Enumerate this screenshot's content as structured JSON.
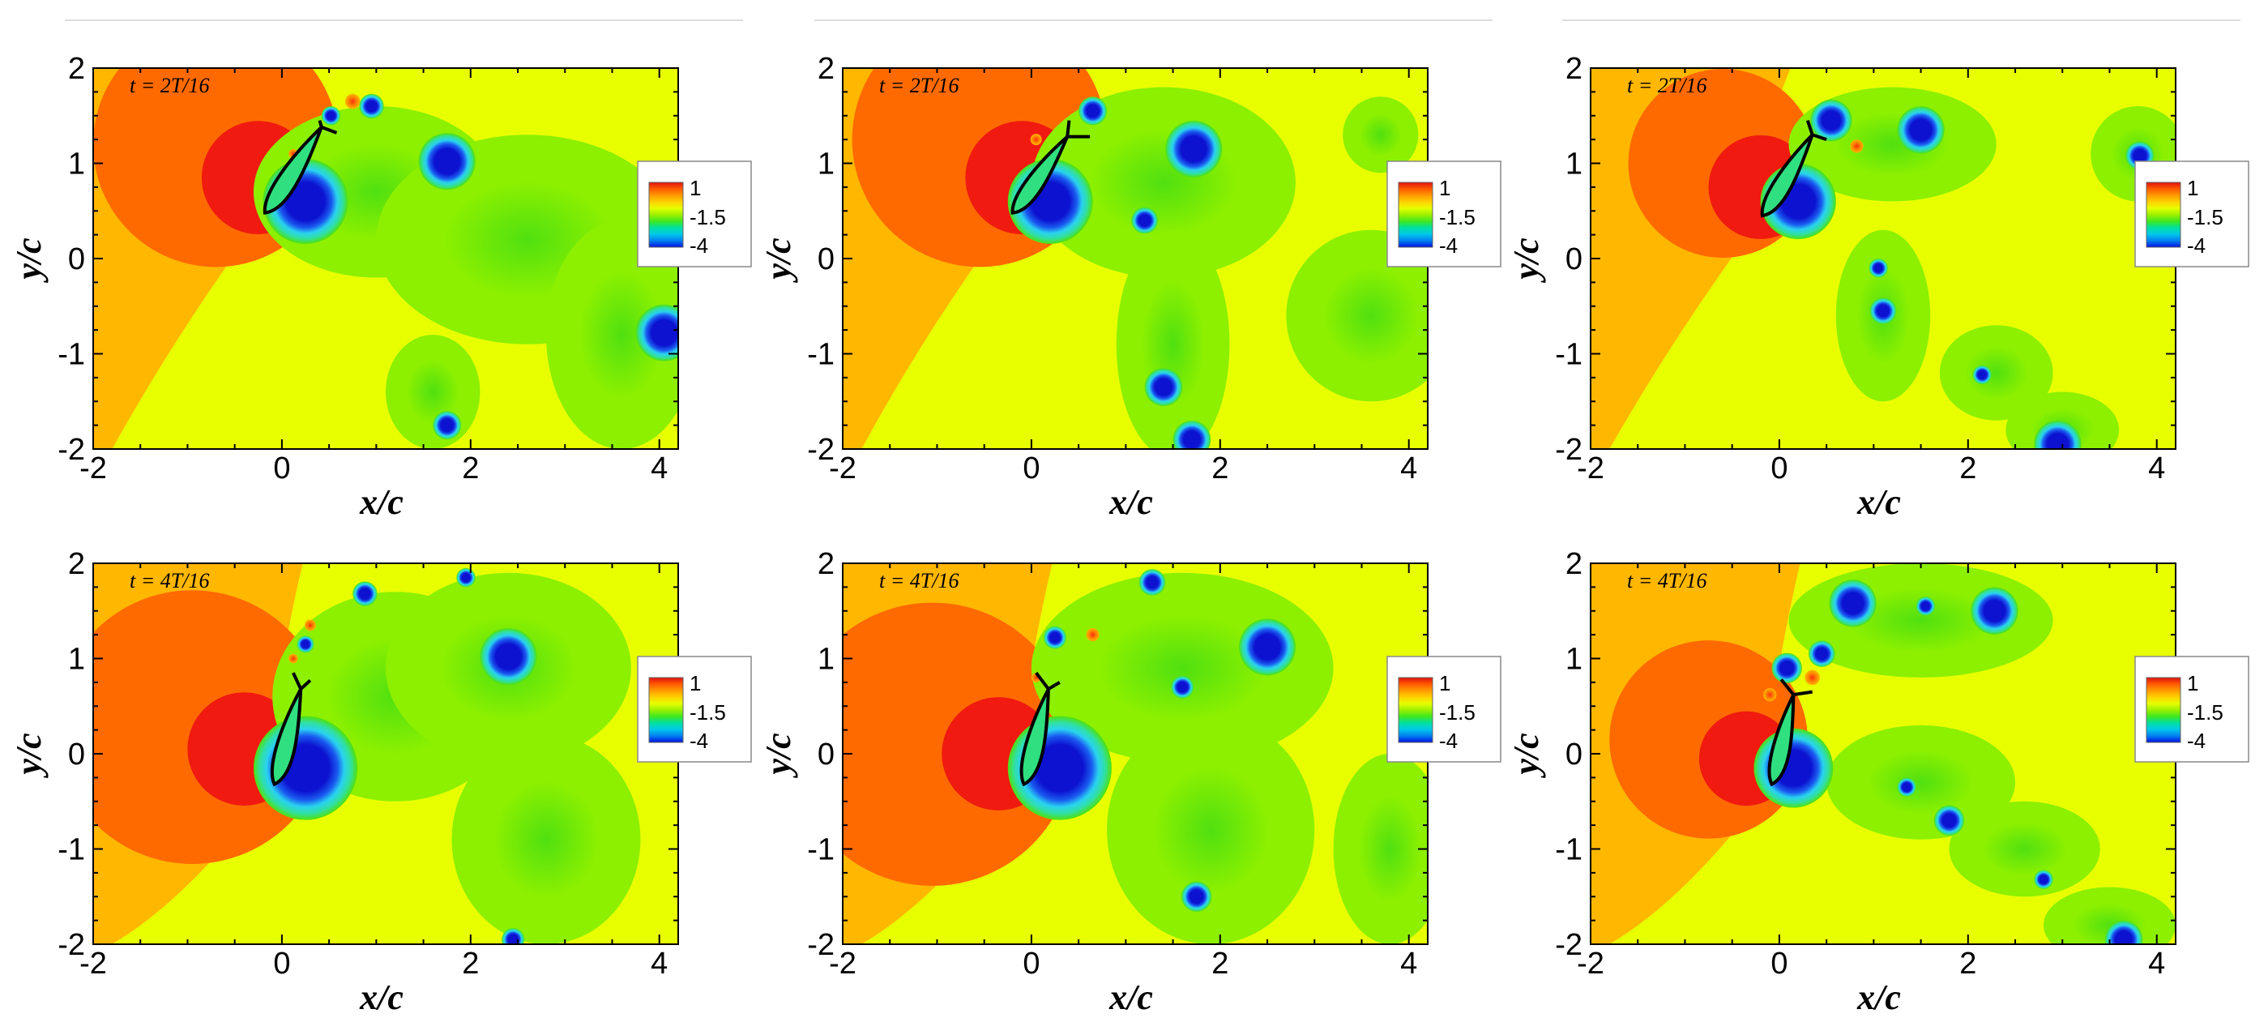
{
  "chart_data": {
    "type": "heatmap",
    "layout": {
      "rows": 2,
      "columns": 3
    },
    "xlabel": "x/c",
    "ylabel": "y/c",
    "xlim": [
      -2,
      4.2
    ],
    "ylim": [
      -2,
      2
    ],
    "xticks": [
      "-2",
      "0",
      "2",
      "4"
    ],
    "yticks": [
      "2",
      "1",
      "0",
      "-1",
      "-2"
    ],
    "colorbar": {
      "labels": [
        "1",
        "-1.5",
        "-4"
      ],
      "range": [
        -4,
        1
      ],
      "colors": [
        "#e01010",
        "#ff5a00",
        "#ff9a00",
        "#ffd000",
        "#e6ff00",
        "#9cf000",
        "#40e820",
        "#00e0a0",
        "#00c8e8",
        "#0080f0",
        "#0010e0"
      ]
    },
    "colors": {
      "far_field": "#e8ff00",
      "outer_high": "#ffb700",
      "high": "#ff6a00",
      "peak": "#f01a10",
      "wake": "#8cf000",
      "wake_mid": "#50e010",
      "vortex_ring": "#2ad2f0",
      "vortex_core": "#0c12d0",
      "airfoil_fill": "#30e080",
      "airfoil_outline": "#000000"
    },
    "panels": [
      {
        "time_label": "t = 2T/16",
        "airfoil": {
          "le": [
            -0.18,
            0.48
          ],
          "te": [
            0.42,
            1.38
          ],
          "flap": [
            [
              0.42,
              1.38
            ],
            [
              0.4,
              1.45
            ]
          ],
          "flap2": [
            [
              0.42,
              1.38
            ],
            [
              0.58,
              1.32
            ]
          ]
        },
        "high_regions": [
          {
            "x": -0.7,
            "y": 1.2,
            "r": 1.3,
            "level": "high"
          },
          {
            "x": -0.25,
            "y": 0.85,
            "r": 0.6,
            "level": "peak"
          }
        ],
        "wake_blobs": [
          {
            "x": 1.0,
            "y": 0.7,
            "rx": 1.3,
            "ry": 0.9
          },
          {
            "x": 2.6,
            "y": 0.2,
            "rx": 1.6,
            "ry": 1.1
          },
          {
            "x": 3.6,
            "y": -0.8,
            "rx": 0.8,
            "ry": 1.2
          },
          {
            "x": 1.6,
            "y": -1.4,
            "rx": 0.5,
            "ry": 0.6
          }
        ],
        "vortices": [
          {
            "x": 1.75,
            "y": 1.02,
            "r": 0.3
          },
          {
            "x": 0.95,
            "y": 1.6,
            "r": 0.13
          },
          {
            "x": 0.52,
            "y": 1.5,
            "r": 0.1
          },
          {
            "x": 4.05,
            "y": -0.78,
            "r": 0.3
          },
          {
            "x": 1.75,
            "y": -1.75,
            "r": 0.15
          },
          {
            "x": 0.25,
            "y": 0.6,
            "r": 0.45
          }
        ],
        "positive_spots": [
          {
            "x": 0.75,
            "y": 1.65,
            "r": 0.08
          },
          {
            "x": 0.12,
            "y": 1.1,
            "r": 0.05
          }
        ]
      },
      {
        "time_label": "t = 2T/16",
        "airfoil": {
          "le": [
            -0.2,
            0.48
          ],
          "te": [
            0.38,
            1.28
          ],
          "flap": [
            [
              0.38,
              1.28
            ],
            [
              0.4,
              1.45
            ]
          ],
          "flap2": [
            [
              0.38,
              1.28
            ],
            [
              0.62,
              1.28
            ]
          ]
        },
        "high_regions": [
          {
            "x": -0.55,
            "y": 1.25,
            "r": 1.35,
            "level": "high"
          },
          {
            "x": -0.1,
            "y": 0.85,
            "r": 0.6,
            "level": "peak"
          }
        ],
        "wake_blobs": [
          {
            "x": 1.4,
            "y": 0.8,
            "rx": 1.4,
            "ry": 1.0
          },
          {
            "x": 1.5,
            "y": -0.9,
            "rx": 0.6,
            "ry": 1.2
          },
          {
            "x": 3.6,
            "y": -0.6,
            "rx": 0.9,
            "ry": 0.9
          },
          {
            "x": 3.7,
            "y": 1.3,
            "rx": 0.4,
            "ry": 0.4
          }
        ],
        "vortices": [
          {
            "x": 1.72,
            "y": 1.15,
            "r": 0.3
          },
          {
            "x": 0.65,
            "y": 1.55,
            "r": 0.15
          },
          {
            "x": 1.2,
            "y": 0.4,
            "r": 0.14
          },
          {
            "x": 1.4,
            "y": -1.35,
            "r": 0.2
          },
          {
            "x": 1.7,
            "y": -1.9,
            "r": 0.2
          },
          {
            "x": 0.2,
            "y": 0.6,
            "r": 0.45
          }
        ],
        "positive_spots": [
          {
            "x": 0.05,
            "y": 1.25,
            "r": 0.06
          }
        ]
      },
      {
        "time_label": "t = 2T/16",
        "airfoil": {
          "le": [
            -0.18,
            0.45
          ],
          "te": [
            0.35,
            1.3
          ],
          "flap": [
            [
              0.35,
              1.3
            ],
            [
              0.3,
              1.45
            ]
          ],
          "flap2": [
            [
              0.35,
              1.3
            ],
            [
              0.5,
              1.25
            ]
          ]
        },
        "high_regions": [
          {
            "x": -0.6,
            "y": 1.0,
            "r": 1.0,
            "level": "high"
          },
          {
            "x": -0.2,
            "y": 0.75,
            "r": 0.55,
            "level": "peak"
          }
        ],
        "wake_blobs": [
          {
            "x": 1.2,
            "y": 1.2,
            "rx": 1.1,
            "ry": 0.6
          },
          {
            "x": 1.1,
            "y": -0.6,
            "rx": 0.5,
            "ry": 0.9
          },
          {
            "x": 2.3,
            "y": -1.2,
            "rx": 0.6,
            "ry": 0.5
          },
          {
            "x": 3.0,
            "y": -1.8,
            "rx": 0.6,
            "ry": 0.4
          },
          {
            "x": 3.8,
            "y": 1.1,
            "rx": 0.5,
            "ry": 0.5
          }
        ],
        "vortices": [
          {
            "x": 0.55,
            "y": 1.45,
            "r": 0.22
          },
          {
            "x": 1.5,
            "y": 1.35,
            "r": 0.25
          },
          {
            "x": 1.05,
            "y": -0.1,
            "r": 0.1
          },
          {
            "x": 1.1,
            "y": -0.55,
            "r": 0.14
          },
          {
            "x": 2.15,
            "y": -1.22,
            "r": 0.1
          },
          {
            "x": 2.95,
            "y": -1.95,
            "r": 0.25
          },
          {
            "x": 3.82,
            "y": 1.08,
            "r": 0.15
          },
          {
            "x": 0.2,
            "y": 0.6,
            "r": 0.4
          }
        ],
        "positive_spots": [
          {
            "x": 0.82,
            "y": 1.18,
            "r": 0.07
          }
        ]
      },
      {
        "time_label": "t = 4T/16",
        "airfoil": {
          "le": [
            -0.08,
            -0.32
          ],
          "te": [
            0.2,
            0.68
          ],
          "flap": [
            [
              0.2,
              0.68
            ],
            [
              0.12,
              0.85
            ]
          ],
          "flap2": [
            [
              0.2,
              0.68
            ],
            [
              0.3,
              0.77
            ]
          ]
        },
        "high_regions": [
          {
            "x": -0.95,
            "y": 0.28,
            "r": 1.45,
            "level": "high"
          },
          {
            "x": -0.4,
            "y": 0.05,
            "r": 0.6,
            "level": "peak"
          }
        ],
        "wake_blobs": [
          {
            "x": 1.2,
            "y": 0.6,
            "rx": 1.3,
            "ry": 1.1
          },
          {
            "x": 2.4,
            "y": 0.9,
            "rx": 1.3,
            "ry": 1.0
          },
          {
            "x": 2.8,
            "y": -0.9,
            "rx": 1.0,
            "ry": 1.1
          }
        ],
        "vortices": [
          {
            "x": 2.4,
            "y": 1.02,
            "r": 0.3
          },
          {
            "x": 0.88,
            "y": 1.68,
            "r": 0.13
          },
          {
            "x": 1.95,
            "y": 1.85,
            "r": 0.1
          },
          {
            "x": 0.25,
            "y": 1.15,
            "r": 0.09
          },
          {
            "x": 0.25,
            "y": -0.15,
            "r": 0.55
          },
          {
            "x": 2.45,
            "y": -1.95,
            "r": 0.12
          }
        ],
        "positive_spots": [
          {
            "x": 0.3,
            "y": 1.35,
            "r": 0.06
          },
          {
            "x": 0.12,
            "y": 1.0,
            "r": 0.05
          }
        ]
      },
      {
        "time_label": "t = 4T/16",
        "airfoil": {
          "le": [
            -0.08,
            -0.32
          ],
          "te": [
            0.18,
            0.68
          ],
          "flap": [
            [
              0.18,
              0.68
            ],
            [
              0.05,
              0.85
            ]
          ],
          "flap2": [
            [
              0.18,
              0.68
            ],
            [
              0.3,
              0.75
            ]
          ]
        },
        "high_regions": [
          {
            "x": -1.05,
            "y": 0.1,
            "r": 1.5,
            "level": "high"
          },
          {
            "x": -0.35,
            "y": 0.0,
            "r": 0.6,
            "level": "peak"
          }
        ],
        "wake_blobs": [
          {
            "x": 1.6,
            "y": 0.9,
            "rx": 1.6,
            "ry": 1.0
          },
          {
            "x": 1.9,
            "y": -0.8,
            "rx": 1.1,
            "ry": 1.2
          },
          {
            "x": 3.8,
            "y": -1.0,
            "rx": 0.6,
            "ry": 1.0
          }
        ],
        "vortices": [
          {
            "x": 2.5,
            "y": 1.12,
            "r": 0.3
          },
          {
            "x": 1.28,
            "y": 1.8,
            "r": 0.14
          },
          {
            "x": 0.25,
            "y": 1.22,
            "r": 0.12
          },
          {
            "x": 0.3,
            "y": -0.15,
            "r": 0.55
          },
          {
            "x": 1.75,
            "y": -1.5,
            "r": 0.16
          },
          {
            "x": 1.6,
            "y": 0.7,
            "r": 0.12
          }
        ],
        "positive_spots": [
          {
            "x": 0.65,
            "y": 1.25,
            "r": 0.07
          },
          {
            "x": 0.05,
            "y": 0.8,
            "r": 0.05
          }
        ]
      },
      {
        "time_label": "t = 4T/16",
        "airfoil": {
          "le": [
            -0.08,
            -0.32
          ],
          "te": [
            0.15,
            0.62
          ],
          "flap": [
            [
              0.15,
              0.62
            ],
            [
              0.02,
              0.78
            ]
          ],
          "flap2": [
            [
              0.15,
              0.62
            ],
            [
              0.35,
              0.65
            ]
          ]
        },
        "high_regions": [
          {
            "x": -0.75,
            "y": 0.15,
            "r": 1.05,
            "level": "high"
          },
          {
            "x": -0.35,
            "y": -0.05,
            "r": 0.5,
            "level": "peak"
          }
        ],
        "wake_blobs": [
          {
            "x": 1.5,
            "y": 1.4,
            "rx": 1.4,
            "ry": 0.6
          },
          {
            "x": 1.5,
            "y": -0.3,
            "rx": 1.0,
            "ry": 0.6
          },
          {
            "x": 2.6,
            "y": -1.0,
            "rx": 0.8,
            "ry": 0.5
          },
          {
            "x": 3.5,
            "y": -1.8,
            "rx": 0.7,
            "ry": 0.4
          }
        ],
        "vortices": [
          {
            "x": 0.78,
            "y": 1.58,
            "r": 0.25
          },
          {
            "x": 2.28,
            "y": 1.5,
            "r": 0.25
          },
          {
            "x": 1.55,
            "y": 1.55,
            "r": 0.1
          },
          {
            "x": 0.45,
            "y": 1.05,
            "r": 0.14
          },
          {
            "x": 0.08,
            "y": 0.9,
            "r": 0.16
          },
          {
            "x": 1.35,
            "y": -0.35,
            "r": 0.1
          },
          {
            "x": 1.8,
            "y": -0.7,
            "r": 0.16
          },
          {
            "x": 2.8,
            "y": -1.32,
            "r": 0.1
          },
          {
            "x": 3.65,
            "y": -1.95,
            "r": 0.2
          },
          {
            "x": 0.15,
            "y": -0.15,
            "r": 0.42
          }
        ],
        "positive_spots": [
          {
            "x": 0.35,
            "y": 0.8,
            "r": 0.08
          },
          {
            "x": -0.1,
            "y": 0.62,
            "r": 0.07
          }
        ]
      }
    ]
  }
}
